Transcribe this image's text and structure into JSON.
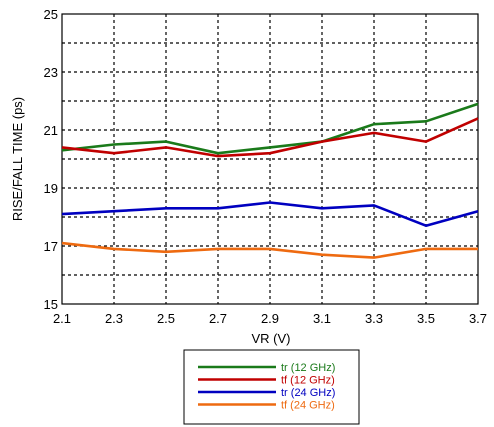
{
  "chart_data": {
    "type": "line",
    "title": "",
    "xlabel": "VR (V)",
    "ylabel": "RISE/FALL TIME (ps)",
    "x": [
      2.1,
      2.3,
      2.5,
      2.7,
      2.9,
      3.1,
      3.3,
      3.5,
      3.7
    ],
    "x_tick_labels": [
      "2.1",
      "2.3",
      "2.5",
      "2.7",
      "2.9",
      "3.1",
      "3.3",
      "3.5",
      "3.7"
    ],
    "xlim": [
      2.1,
      3.7
    ],
    "ylim": [
      15,
      25
    ],
    "y_ticks_labeled": [
      15,
      17,
      19,
      21,
      23,
      25
    ],
    "y_tick_labels": [
      "15",
      "17",
      "19",
      "21",
      "23",
      "25"
    ],
    "y_gridlines": [
      16,
      17,
      18,
      19,
      20,
      21,
      22,
      23,
      24
    ],
    "grid": "dashed",
    "legend_position": "bottom-center",
    "series": [
      {
        "name": "tr (12 GHz)",
        "color": "#1a7a1a",
        "values": [
          20.3,
          20.5,
          20.6,
          20.2,
          20.4,
          20.6,
          21.2,
          21.3,
          21.9
        ]
      },
      {
        "name": "tf (12 GHz)",
        "color": "#c00000",
        "values": [
          20.4,
          20.2,
          20.4,
          20.1,
          20.2,
          20.6,
          20.9,
          20.6,
          21.4
        ]
      },
      {
        "name": "tr (24 GHz)",
        "color": "#0000c0",
        "values": [
          18.1,
          18.2,
          18.3,
          18.3,
          18.5,
          18.3,
          18.4,
          17.7,
          18.2
        ]
      },
      {
        "name": "tf (24 GHz)",
        "color": "#ee6a10",
        "values": [
          17.1,
          16.9,
          16.8,
          16.9,
          16.9,
          16.7,
          16.6,
          16.9,
          16.9
        ]
      }
    ]
  }
}
